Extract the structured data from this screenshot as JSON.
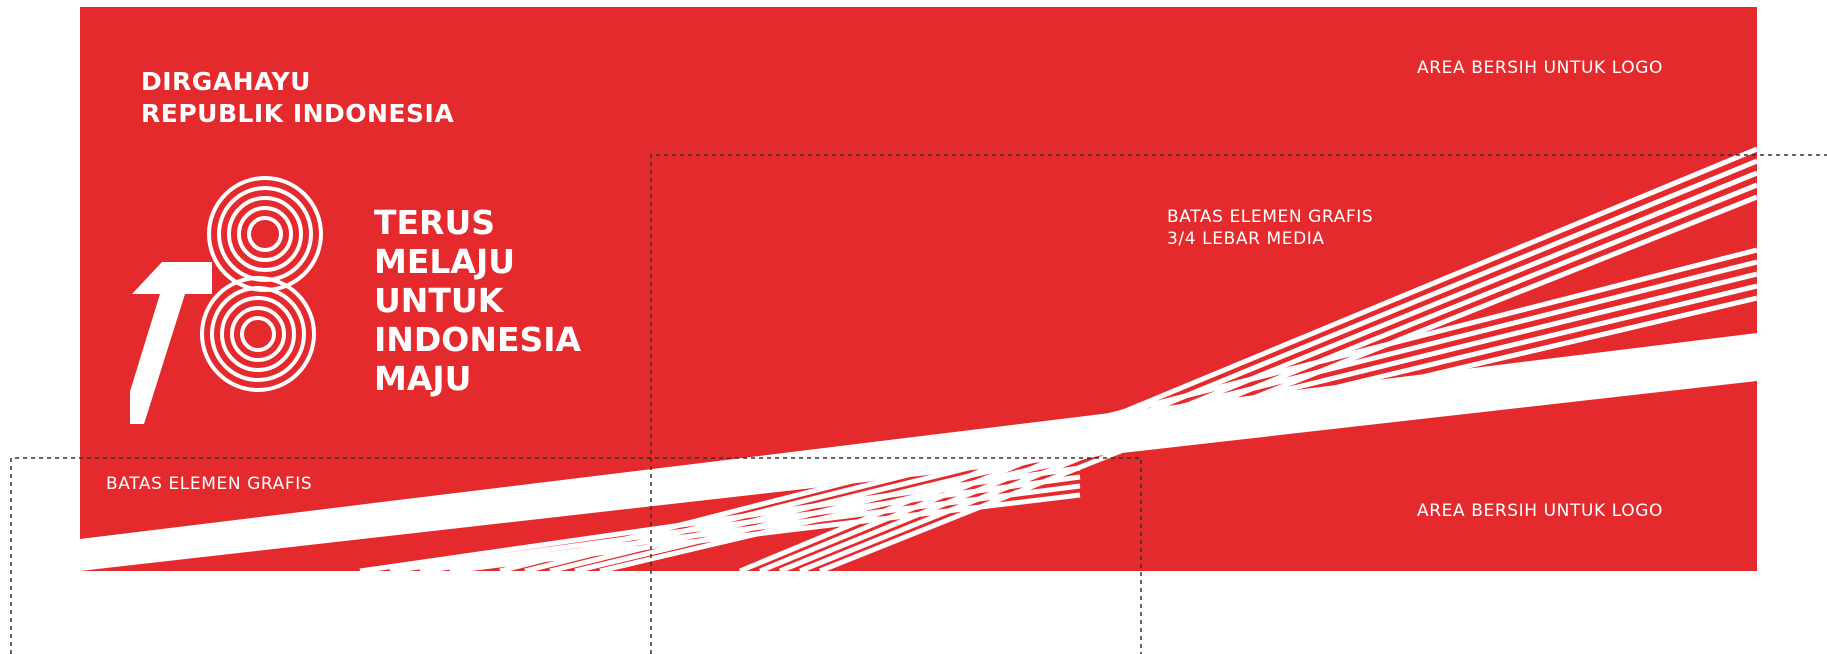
{
  "banner": {
    "background_color": "#e52a2e",
    "graphic_color": "#ffffff",
    "greeting_lines": [
      "DIRGAHAYU",
      "REPUBLIK INDONESIA"
    ],
    "logo_icon": "hut-ri-78-logo",
    "tagline_lines": [
      "TERUS",
      "MELAJU",
      "UNTUK",
      "INDONESIA",
      "MAJU"
    ]
  },
  "annotations": {
    "clear_area_top": "AREA BERSIH UNTUK LOGO",
    "clear_area_bottom": "AREA BERSIH UNTUK LOGO",
    "graphic_boundary_right": [
      "BATAS ELEMEN GRAFIS",
      "3/4 LEBAR MEDIA"
    ],
    "graphic_boundary_left": "BATAS ELEMEN GRAFIS",
    "guide_line_color": "#333333"
  }
}
